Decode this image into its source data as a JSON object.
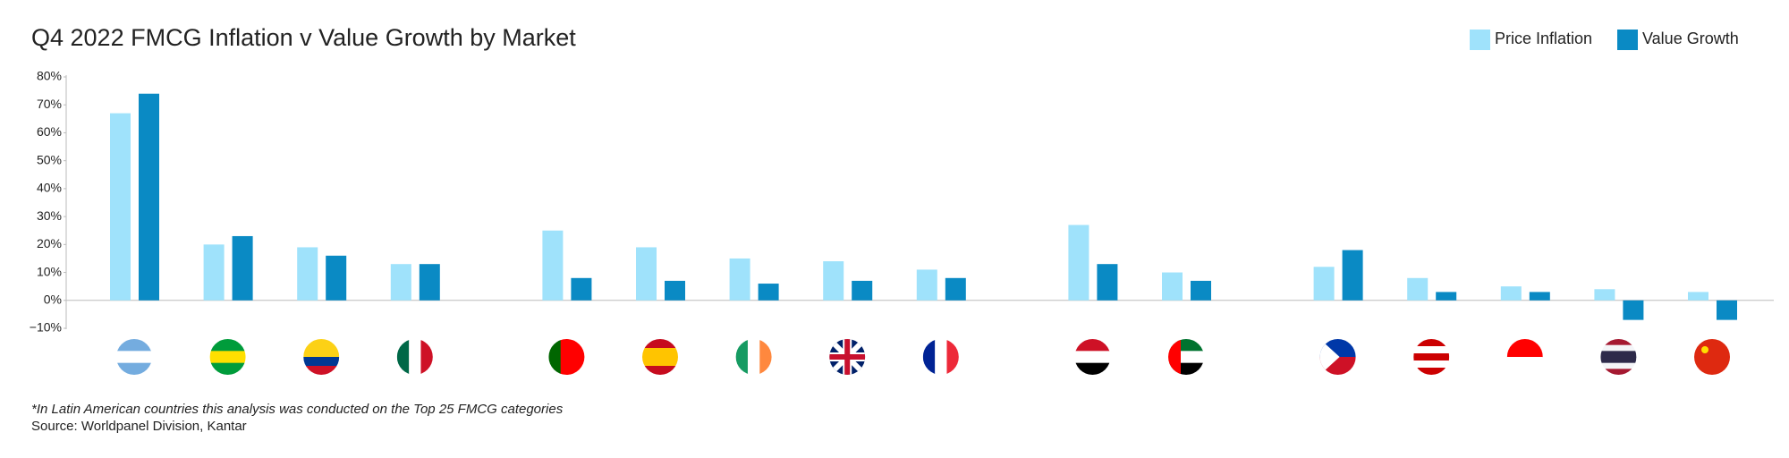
{
  "chart_data": {
    "type": "bar",
    "title": "Q4 2022 FMCG Inflation v Value Growth by Market",
    "categories": [
      null,
      null,
      null,
      null,
      null,
      null,
      null,
      null,
      null,
      null,
      null,
      null,
      null,
      null,
      null,
      null
    ],
    "series": [
      {
        "name": "Price Inflation",
        "color": "#9fe2fb",
        "values": [
          67,
          20,
          19,
          13,
          25,
          19,
          15,
          14,
          11,
          27,
          10,
          12,
          8,
          5,
          4,
          3
        ]
      },
      {
        "name": "Value Growth",
        "color": "#0a8ac4",
        "values": [
          74,
          23,
          16,
          13,
          8,
          7,
          6,
          7,
          8,
          13,
          7,
          18,
          3,
          3,
          -7,
          -7
        ]
      }
    ],
    "ylim": [
      -10,
      80
    ],
    "yticks": [
      {
        "value": -10,
        "label": "−10%"
      },
      {
        "value": 0,
        "label": "0%"
      },
      {
        "value": 10,
        "label": "10%"
      },
      {
        "value": 20,
        "label": "20%"
      },
      {
        "value": 30,
        "label": "30%"
      },
      {
        "value": 40,
        "label": "40%"
      },
      {
        "value": 50,
        "label": "50%"
      },
      {
        "value": 60,
        "label": "60%"
      },
      {
        "value": 70,
        "label": "70%"
      },
      {
        "value": 80,
        "label": "80%"
      }
    ],
    "grid": false,
    "legend": "top-right",
    "footnote": "*In Latin American countries this analysis was conducted on the Top 25 FMCG categories",
    "source": "Source: Worldpanel Division, Kantar"
  }
}
